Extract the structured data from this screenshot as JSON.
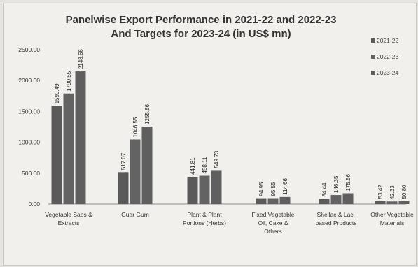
{
  "chart_data": {
    "type": "bar",
    "title": [
      "Panelwise Export Performance in 2021-22 and 2022-23",
      "And Targets for 2023-24 (in US$ mn)"
    ],
    "categories": [
      [
        "Vegetable Saps &",
        "Extracts"
      ],
      [
        "Guar Gum"
      ],
      [
        "Plant & Plant",
        "Portions (Herbs)"
      ],
      [
        "Fixed Vegetable",
        "Oil, Cake &",
        "Others"
      ],
      [
        "Shellac & Lac-",
        "based Products"
      ],
      [
        "Other Vegetable",
        "Materials"
      ]
    ],
    "series": [
      {
        "name": "2021-22",
        "color": "#5a5a5a",
        "values": [
          1590.49,
          517.07,
          441.81,
          94.95,
          84.44,
          53.42
        ],
        "labels": [
          "1590.49",
          "517.07",
          "441.81",
          "94.95",
          "84.44",
          "53.42"
        ]
      },
      {
        "name": "2022-23",
        "color": "#636363",
        "values": [
          1790.55,
          1046.55,
          458.11,
          95.55,
          146.35,
          42.33
        ],
        "labels": [
          "1790.55",
          "1046.55",
          "458.11",
          "95.55",
          "146.35",
          "42.33"
        ]
      },
      {
        "name": "2023-24",
        "color": "#5f5f5f",
        "values": [
          2148.66,
          1255.86,
          549.73,
          114.66,
          175.56,
          50.8
        ],
        "labels": [
          "2148.66",
          "1255.86",
          "549.73",
          "114.66",
          "175.56",
          "50.80"
        ]
      }
    ],
    "yticks": [
      "0.00",
      "500.00",
      "1000.00",
      "1500.00",
      "2000.00",
      "2500.00"
    ],
    "ylim": [
      0,
      2500
    ],
    "grid": false,
    "legend_position": "right"
  }
}
